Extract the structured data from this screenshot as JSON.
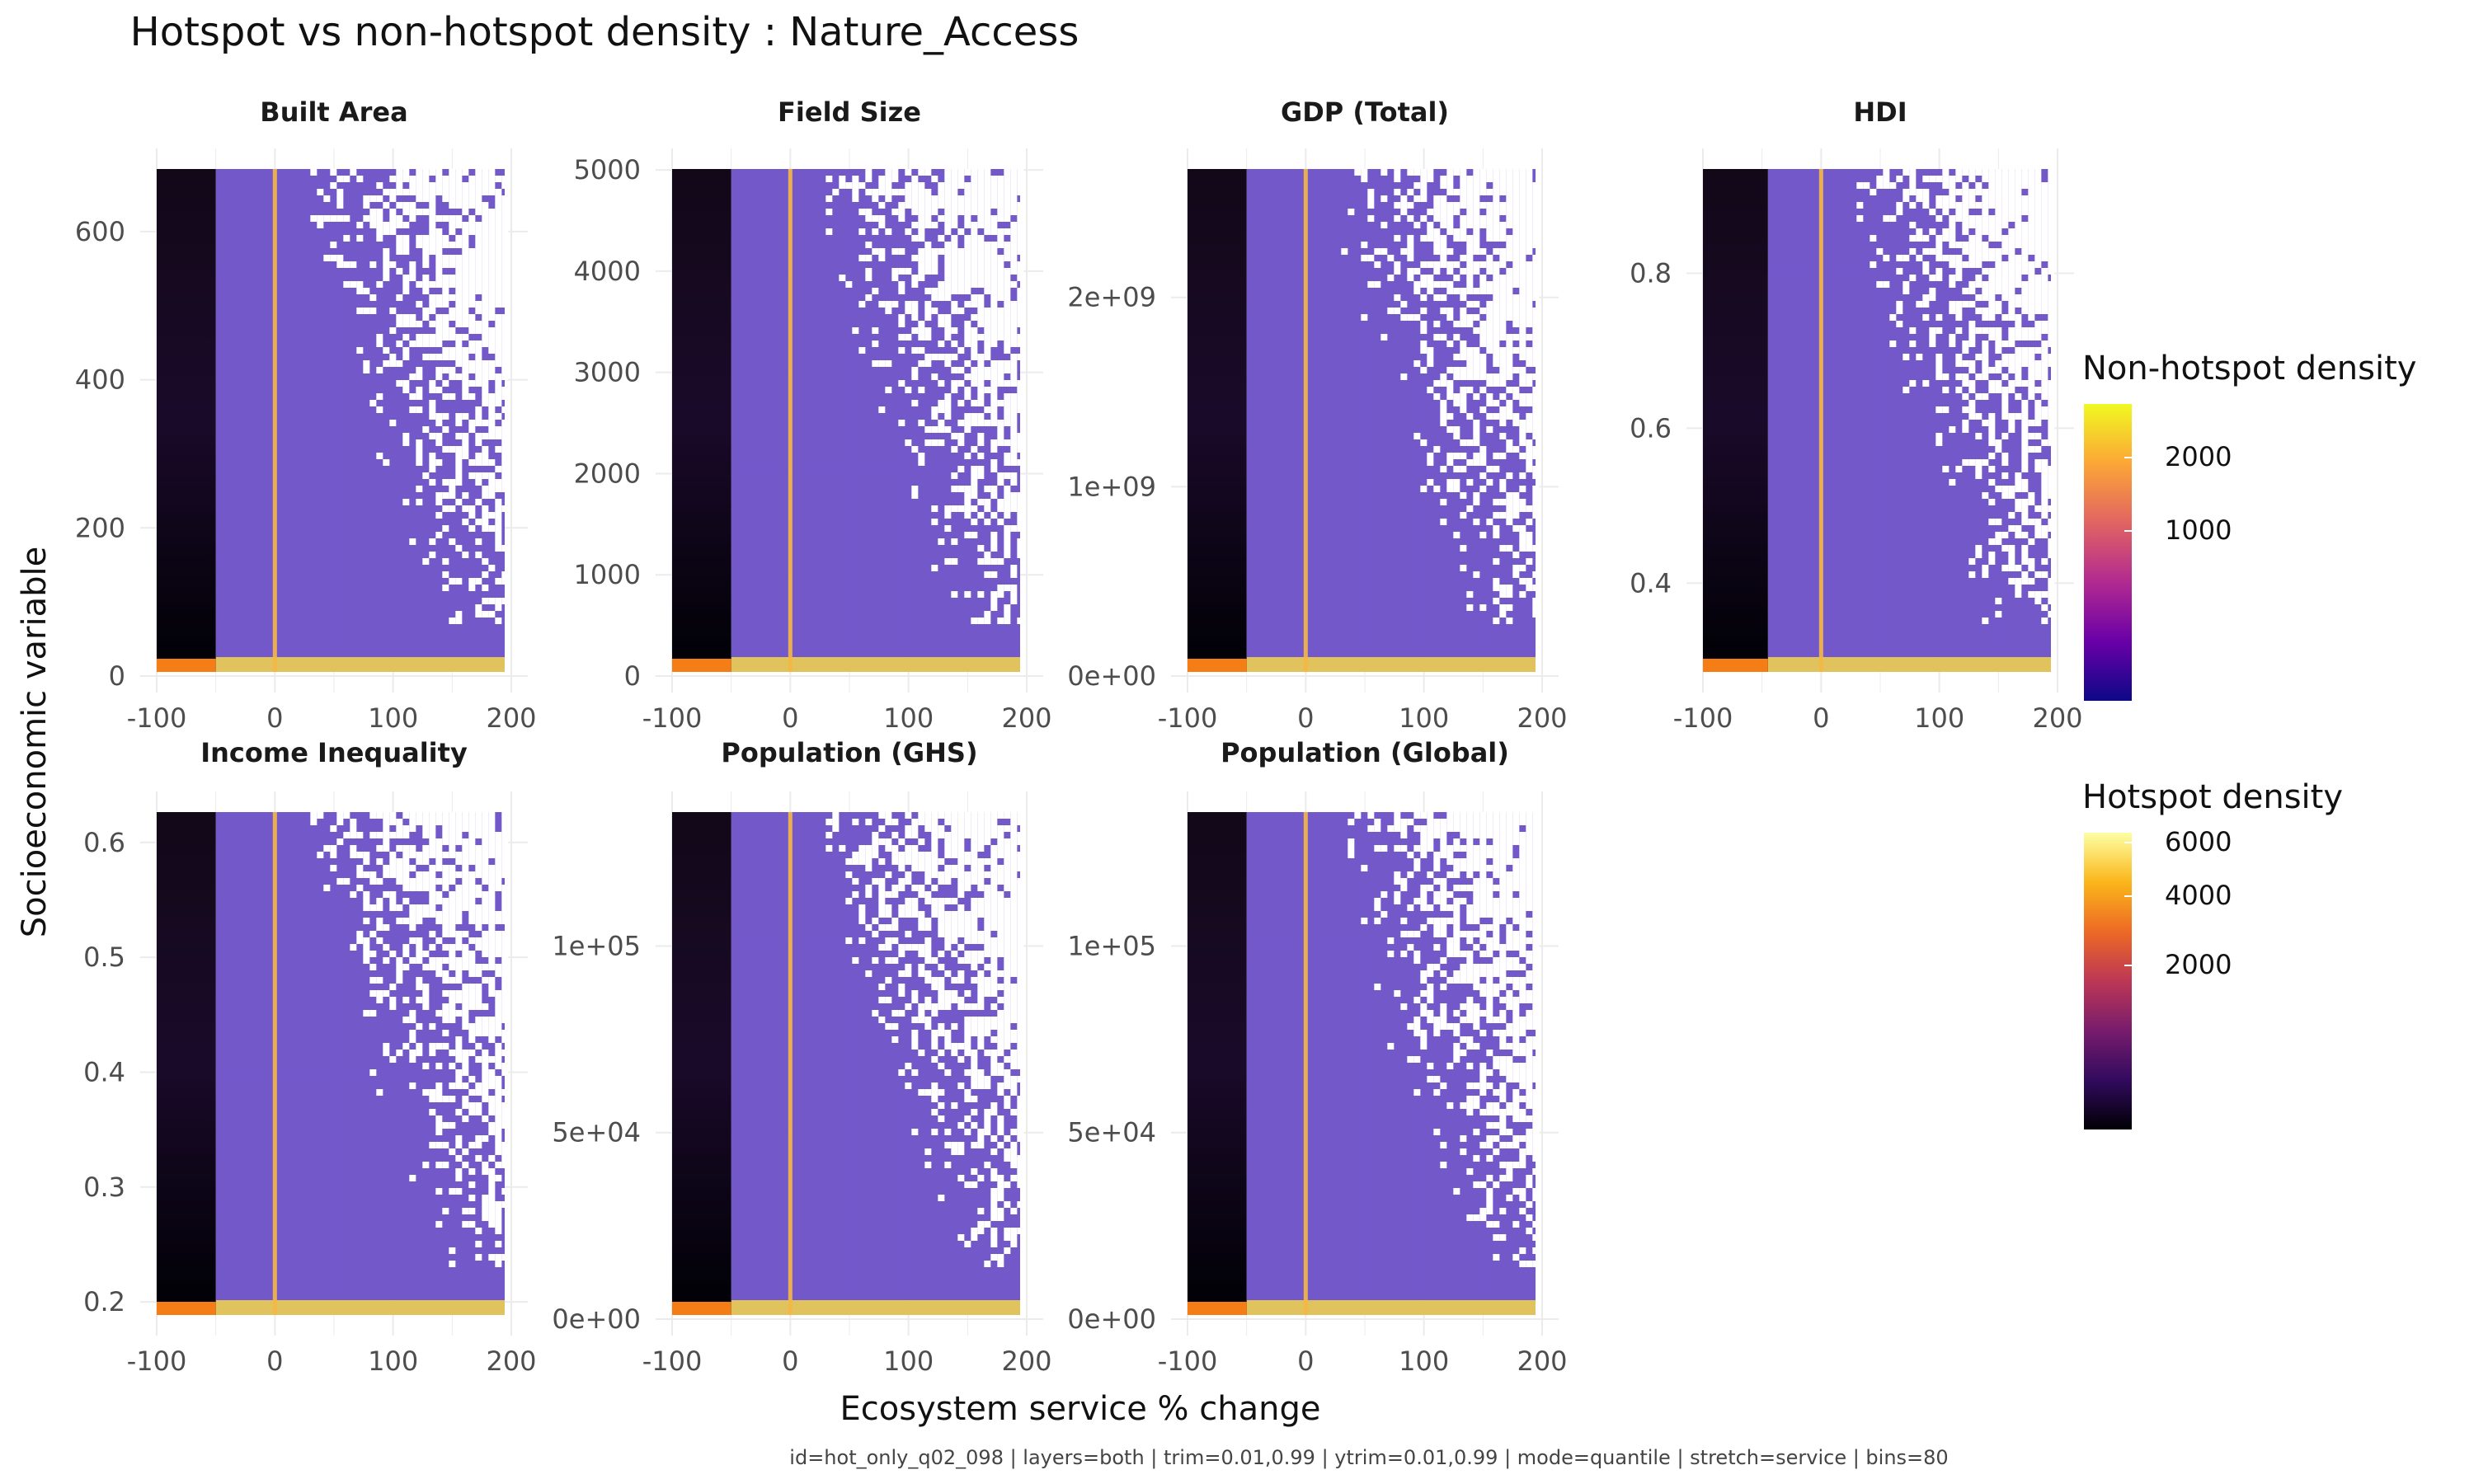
{
  "title": "Hotspot vs non-hotspot density : Nature_Access",
  "xlabel": "Ecosystem service % change",
  "ylabel": "Socioeconomic variable",
  "caption": "id=hot_only_q02_098 | layers=both | trim=0.01,0.99 | ytrim=0.01,0.99 | mode=quantile | stretch=service | bins=80",
  "legend": {
    "nonhot": {
      "title": "Non-hotspot density",
      "ticks": [
        "2000",
        "1000"
      ],
      "colors": [
        "#0d0887",
        "#6a00a8",
        "#b12a90",
        "#e16462",
        "#fca636",
        "#f0f921"
      ]
    },
    "hot": {
      "title": "Hotspot density",
      "ticks": [
        "6000",
        "4000",
        "2000"
      ],
      "colors": [
        "#000004",
        "#320a5e",
        "#781c6d",
        "#bc3754",
        "#ed6925",
        "#fbb61a",
        "#fcffa4"
      ]
    }
  },
  "chart_data": [
    {
      "type": "heatmap",
      "panel": "Built Area",
      "x_range": [
        -100,
        200
      ],
      "y_range": [
        0,
        690
      ],
      "x_ticks": [
        "-100",
        "0",
        "100",
        "200"
      ],
      "y_ticks": [
        {
          "v": 0,
          "label": "0"
        },
        {
          "v": 200,
          "label": "200"
        },
        {
          "v": 400,
          "label": "400"
        },
        {
          "v": 600,
          "label": "600"
        }
      ],
      "hotspot_x_range": [
        -100,
        -50
      ],
      "peak_x": 0
    },
    {
      "type": "heatmap",
      "panel": "Field Size",
      "x_range": [
        -100,
        200
      ],
      "y_range": [
        0,
        5050
      ],
      "x_ticks": [
        "-100",
        "0",
        "100",
        "200"
      ],
      "y_ticks": [
        {
          "v": 0,
          "label": "0"
        },
        {
          "v": 1000,
          "label": "1000"
        },
        {
          "v": 2000,
          "label": "2000"
        },
        {
          "v": 3000,
          "label": "3000"
        },
        {
          "v": 4000,
          "label": "4000"
        },
        {
          "v": 5000,
          "label": "5000"
        }
      ],
      "hotspot_x_range": [
        -100,
        -50
      ],
      "peak_x": 0
    },
    {
      "type": "heatmap",
      "panel": "GDP (Total)",
      "x_range": [
        -100,
        200
      ],
      "y_range": [
        0,
        2700000000
      ],
      "x_ticks": [
        "-100",
        "0",
        "100",
        "200"
      ],
      "y_ticks": [
        {
          "v": 0,
          "label": "0e+00"
        },
        {
          "v": 1000000000,
          "label": "1e+09"
        },
        {
          "v": 2000000000,
          "label": "2e+09"
        }
      ],
      "hotspot_x_range": [
        -100,
        -50
      ],
      "peak_x": 0
    },
    {
      "type": "heatmap",
      "panel": "HDI",
      "x_range": [
        -100,
        200
      ],
      "y_range": [
        0.28,
        0.94
      ],
      "x_ticks": [
        "-100",
        "0",
        "100",
        "200"
      ],
      "y_ticks": [
        {
          "v": 0.4,
          "label": "0.4"
        },
        {
          "v": 0.6,
          "label": "0.6"
        },
        {
          "v": 0.8,
          "label": "0.8"
        }
      ],
      "hotspot_x_range": [
        -100,
        -45
      ],
      "peak_x": 0
    },
    {
      "type": "heatmap",
      "panel": "Income Inequality",
      "x_range": [
        -100,
        200
      ],
      "y_range": [
        0.185,
        0.63
      ],
      "x_ticks": [
        "-100",
        "0",
        "100",
        "200"
      ],
      "y_ticks": [
        {
          "v": 0.2,
          "label": "0.2"
        },
        {
          "v": 0.3,
          "label": "0.3"
        },
        {
          "v": 0.4,
          "label": "0.4"
        },
        {
          "v": 0.5,
          "label": "0.5"
        },
        {
          "v": 0.6,
          "label": "0.6"
        }
      ],
      "hotspot_x_range": [
        -100,
        -50
      ],
      "peak_x": 0
    },
    {
      "type": "heatmap",
      "panel": "Population (GHS)",
      "x_range": [
        -100,
        200
      ],
      "y_range": [
        0,
        137000
      ],
      "x_ticks": [
        "-100",
        "0",
        "100",
        "200"
      ],
      "y_ticks": [
        {
          "v": 0,
          "label": "0e+00"
        },
        {
          "v": 50000,
          "label": "5e+04"
        },
        {
          "v": 100000,
          "label": "1e+05"
        }
      ],
      "hotspot_x_range": [
        -100,
        -50
      ],
      "peak_x": 0
    },
    {
      "type": "heatmap",
      "panel": "Population (Global)",
      "x_range": [
        -100,
        200
      ],
      "y_range": [
        0,
        137000
      ],
      "x_ticks": [
        "-100",
        "0",
        "100",
        "200"
      ],
      "y_ticks": [
        {
          "v": 0,
          "label": "0e+00"
        },
        {
          "v": 50000,
          "label": "5e+04"
        },
        {
          "v": 100000,
          "label": "1e+05"
        }
      ],
      "hotspot_x_range": [
        -100,
        -50
      ],
      "peak_x": 0
    }
  ]
}
